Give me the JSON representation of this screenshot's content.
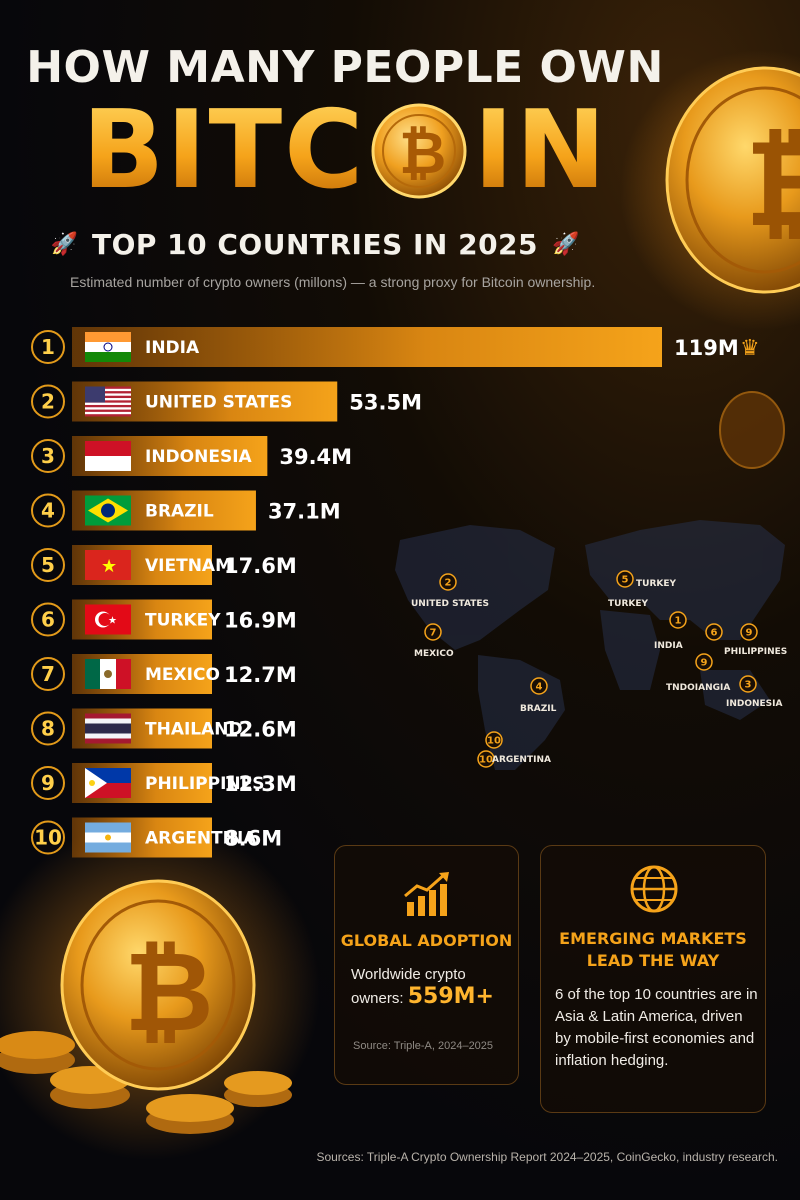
{
  "header": {
    "title_line1": "HOW MANY PEOPLE OWN",
    "title_big_left": "BITC",
    "title_big_right": "IN",
    "subtitle": "TOP 10 COUNTRIES IN 2025",
    "rocket_icon": "rocket-icon",
    "description": "Estimated number of crypto owners (millons) — a strong proxy for Bitcoin ownership."
  },
  "colors": {
    "accent": "#f5a31a",
    "accent_light": "#ffd35a",
    "accent_dark": "#a85a05",
    "background": "#07070b"
  },
  "chart_data": {
    "type": "bar",
    "orientation": "horizontal",
    "categories": [
      "INDIA",
      "UNITED STATES",
      "INDONESIA",
      "BRAZIL",
      "VIETNAM",
      "TURKEY",
      "MEXICO",
      "THAILAND",
      "PHILIPPINES",
      "ARGENTINA"
    ],
    "ranks": [
      "1",
      "2",
      "3",
      "4",
      "5",
      "6",
      "7",
      "8",
      "9",
      "10"
    ],
    "values": [
      119,
      53.5,
      39.4,
      37.1,
      17.6,
      16.9,
      12.7,
      12.6,
      12.3,
      8.6
    ],
    "value_labels": [
      "119M",
      "53.5M",
      "39.4M",
      "37.1M",
      "17.6M",
      "16.9M",
      "12.7M",
      "12.6M",
      "12.3M",
      "8.6M"
    ],
    "flags": [
      "flag-india",
      "flag-united-states",
      "flag-indonesia",
      "flag-brazil",
      "flag-vietnam",
      "flag-turkey",
      "flag-mexico",
      "flag-thailand",
      "flag-philippines",
      "flag-argentina"
    ],
    "top_marker_icon": "crown-icon",
    "title": "",
    "xlabel": "",
    "ylabel": ""
  },
  "map": {
    "labels": [
      {
        "num": "2",
        "name": "UNITED STATES"
      },
      {
        "num": "7",
        "name": "MEXICO"
      },
      {
        "num": "5",
        "name": "TURKEY"
      },
      {
        "num": "",
        "name": "TURKEY"
      },
      {
        "num": "1",
        "name": "INDIA"
      },
      {
        "num": "6",
        "name": ""
      },
      {
        "num": "9",
        "name": "PHILIPPINES"
      },
      {
        "num": "9",
        "name": "TNDOIANGIA"
      },
      {
        "num": "3",
        "name": "INDONESIA"
      },
      {
        "num": "4",
        "name": "BRAZIL"
      },
      {
        "num": "10",
        "name": ""
      },
      {
        "num": "10",
        "name": "ARGENTINA"
      }
    ]
  },
  "cards": {
    "global": {
      "icon": "chart-up-icon",
      "title": "GLOBAL ADOPTION",
      "body_prefix": "Worldwide crypto owners:",
      "highlight": "559M+",
      "source": "Source: Triple-A, 2024–2025"
    },
    "emerging": {
      "icon": "globe-icon",
      "title_line1": "EMERGING MARKETS",
      "title_line2": "LEAD THE WAY",
      "body": "6 of the top 10 countries are in Asia & Latin America, driven by mobile-first economies and inflation hedging."
    }
  },
  "footer": {
    "sources": "Sources: Triple-A Crypto Ownership Report 2024–2025, CoinGecko, industry research."
  }
}
